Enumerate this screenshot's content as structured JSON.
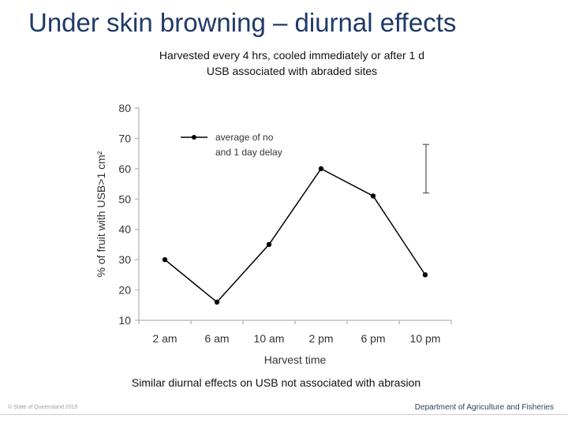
{
  "slide": {
    "title": "Under skin browning – diurnal effects",
    "subtitle_line1": "Harvested every 4 hrs, cooled immediately or after 1 d",
    "subtitle_line2": "USB associated with abraded sites",
    "footnote": "Similar diurnal effects on USB not associated with abrasion",
    "footer_left": "© State of Queensland 2015",
    "footer_right": "Department of Agriculture and Fisheries"
  },
  "chart_data": {
    "type": "line",
    "categories": [
      "2 am",
      "6 am",
      "10 am",
      "2 pm",
      "6 pm",
      "10 pm"
    ],
    "series": [
      {
        "name": "average of no and 1 day delay",
        "values": [
          30,
          16,
          35,
          60,
          51,
          25
        ]
      }
    ],
    "legend_lines": [
      "average of no",
      "and 1 day delay"
    ],
    "legend_position": "top-left",
    "xlabel": "Harvest time",
    "ylabel": "% of fruit with USB>1 cm²",
    "ylim": [
      10,
      80
    ],
    "yticks": [
      10,
      20,
      30,
      40,
      50,
      60,
      70,
      80
    ],
    "grid": false,
    "error_bar": {
      "position": "top-right",
      "range": [
        52,
        68
      ]
    },
    "colors": {
      "line": "#000000",
      "axis": "#bfbfbf",
      "text": "#333333"
    }
  }
}
